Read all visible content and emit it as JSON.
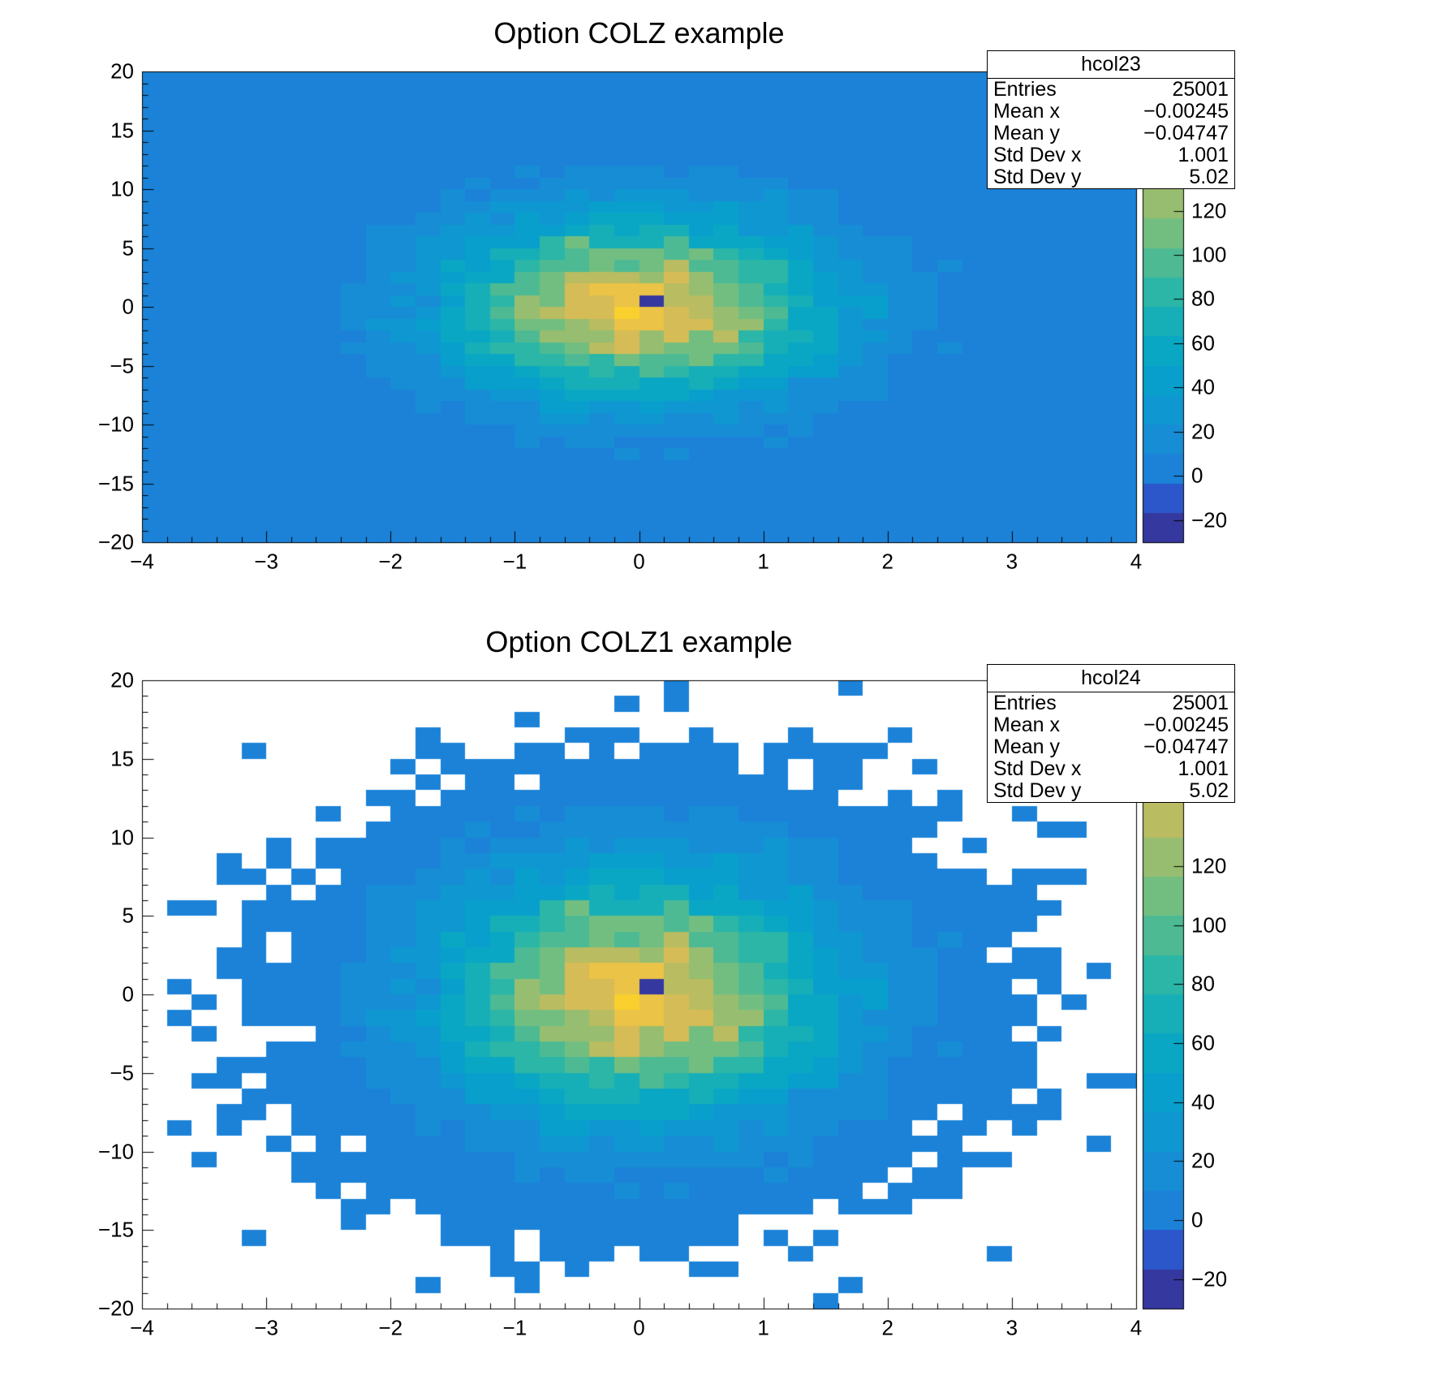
{
  "page": {
    "background": "#ffffff",
    "axis_color": "#000000"
  },
  "palette": {
    "n_contours": 16,
    "stops": [
      [
        0.0,
        "#352a87"
      ],
      [
        0.06,
        "#3545b5"
      ],
      [
        0.1,
        "#2a5ace"
      ],
      [
        0.13,
        "#1e6fd8"
      ],
      [
        0.155,
        "#1b82d8"
      ],
      [
        0.22,
        "#178dd5"
      ],
      [
        0.3,
        "#0d9ad0"
      ],
      [
        0.38,
        "#06a4ca"
      ],
      [
        0.46,
        "#13aebb"
      ],
      [
        0.54,
        "#2eb7a4"
      ],
      [
        0.62,
        "#5cbc8c"
      ],
      [
        0.69,
        "#87bf77"
      ],
      [
        0.76,
        "#aebd65"
      ],
      [
        0.83,
        "#d1bb59"
      ],
      [
        0.9,
        "#e7c24a"
      ],
      [
        0.95,
        "#fcca31"
      ],
      [
        1.0,
        "#f5d928"
      ]
    ]
  },
  "chart_data": [
    {
      "type": "heatmap",
      "name": "hcol23",
      "title": "Option COLZ example",
      "draw_option": "COLZ",
      "draw_zero_bins": true,
      "x_range": [
        -4,
        4
      ],
      "y_range": [
        -20,
        20
      ],
      "x_bins": 40,
      "y_bins": 40,
      "x_ticks": [
        -4,
        -3,
        -2,
        -1,
        0,
        1,
        2,
        3,
        4
      ],
      "y_ticks": [
        -20,
        -15,
        -10,
        -5,
        0,
        5,
        10,
        15,
        20
      ],
      "z_ticks": [
        -20,
        0,
        20,
        40,
        60,
        80,
        100,
        120
      ],
      "z_range": [
        -30,
        183
      ],
      "distribution": {
        "kind": "gaussian2d",
        "entries": 25000,
        "mean_x": 0,
        "mean_y": 0,
        "sigma_x": 1,
        "sigma_y": 5,
        "peak_bin_value": 183,
        "negative_bin": {
          "x_index": 20,
          "y_index": 20,
          "value": -30
        }
      },
      "stats": {
        "name": "hcol23",
        "rows": [
          {
            "label": "Entries",
            "value": "25001"
          },
          {
            "label": "Mean x",
            "value": "−0.00245"
          },
          {
            "label": "Mean y",
            "value": "−0.04747"
          },
          {
            "label": "Std Dev x",
            "value": "1.001"
          },
          {
            "label": "Std Dev y",
            "value": "5.02"
          }
        ]
      }
    },
    {
      "type": "heatmap",
      "name": "hcol24",
      "title": "Option COLZ1 example",
      "draw_option": "COLZ1",
      "draw_zero_bins": false,
      "x_range": [
        -4,
        4
      ],
      "y_range": [
        -20,
        20
      ],
      "x_bins": 40,
      "y_bins": 40,
      "x_ticks": [
        -4,
        -3,
        -2,
        -1,
        0,
        1,
        2,
        3,
        4
      ],
      "y_ticks": [
        -20,
        -15,
        -10,
        -5,
        0,
        5,
        10,
        15,
        20
      ],
      "z_ticks": [
        -20,
        0,
        20,
        40,
        60,
        80,
        100,
        120
      ],
      "z_range": [
        -30,
        183
      ],
      "distribution": {
        "kind": "gaussian2d",
        "entries": 25000,
        "mean_x": 0,
        "mean_y": 0,
        "sigma_x": 1,
        "sigma_y": 5,
        "peak_bin_value": 183,
        "negative_bin": {
          "x_index": 20,
          "y_index": 20,
          "value": -30
        }
      },
      "stats": {
        "name": "hcol24",
        "rows": [
          {
            "label": "Entries",
            "value": "25001"
          },
          {
            "label": "Mean x",
            "value": "−0.00245"
          },
          {
            "label": "Mean y",
            "value": "−0.04747"
          },
          {
            "label": "Std Dev x",
            "value": "1.001"
          },
          {
            "label": "Std Dev y",
            "value": "5.02"
          }
        ]
      }
    }
  ]
}
